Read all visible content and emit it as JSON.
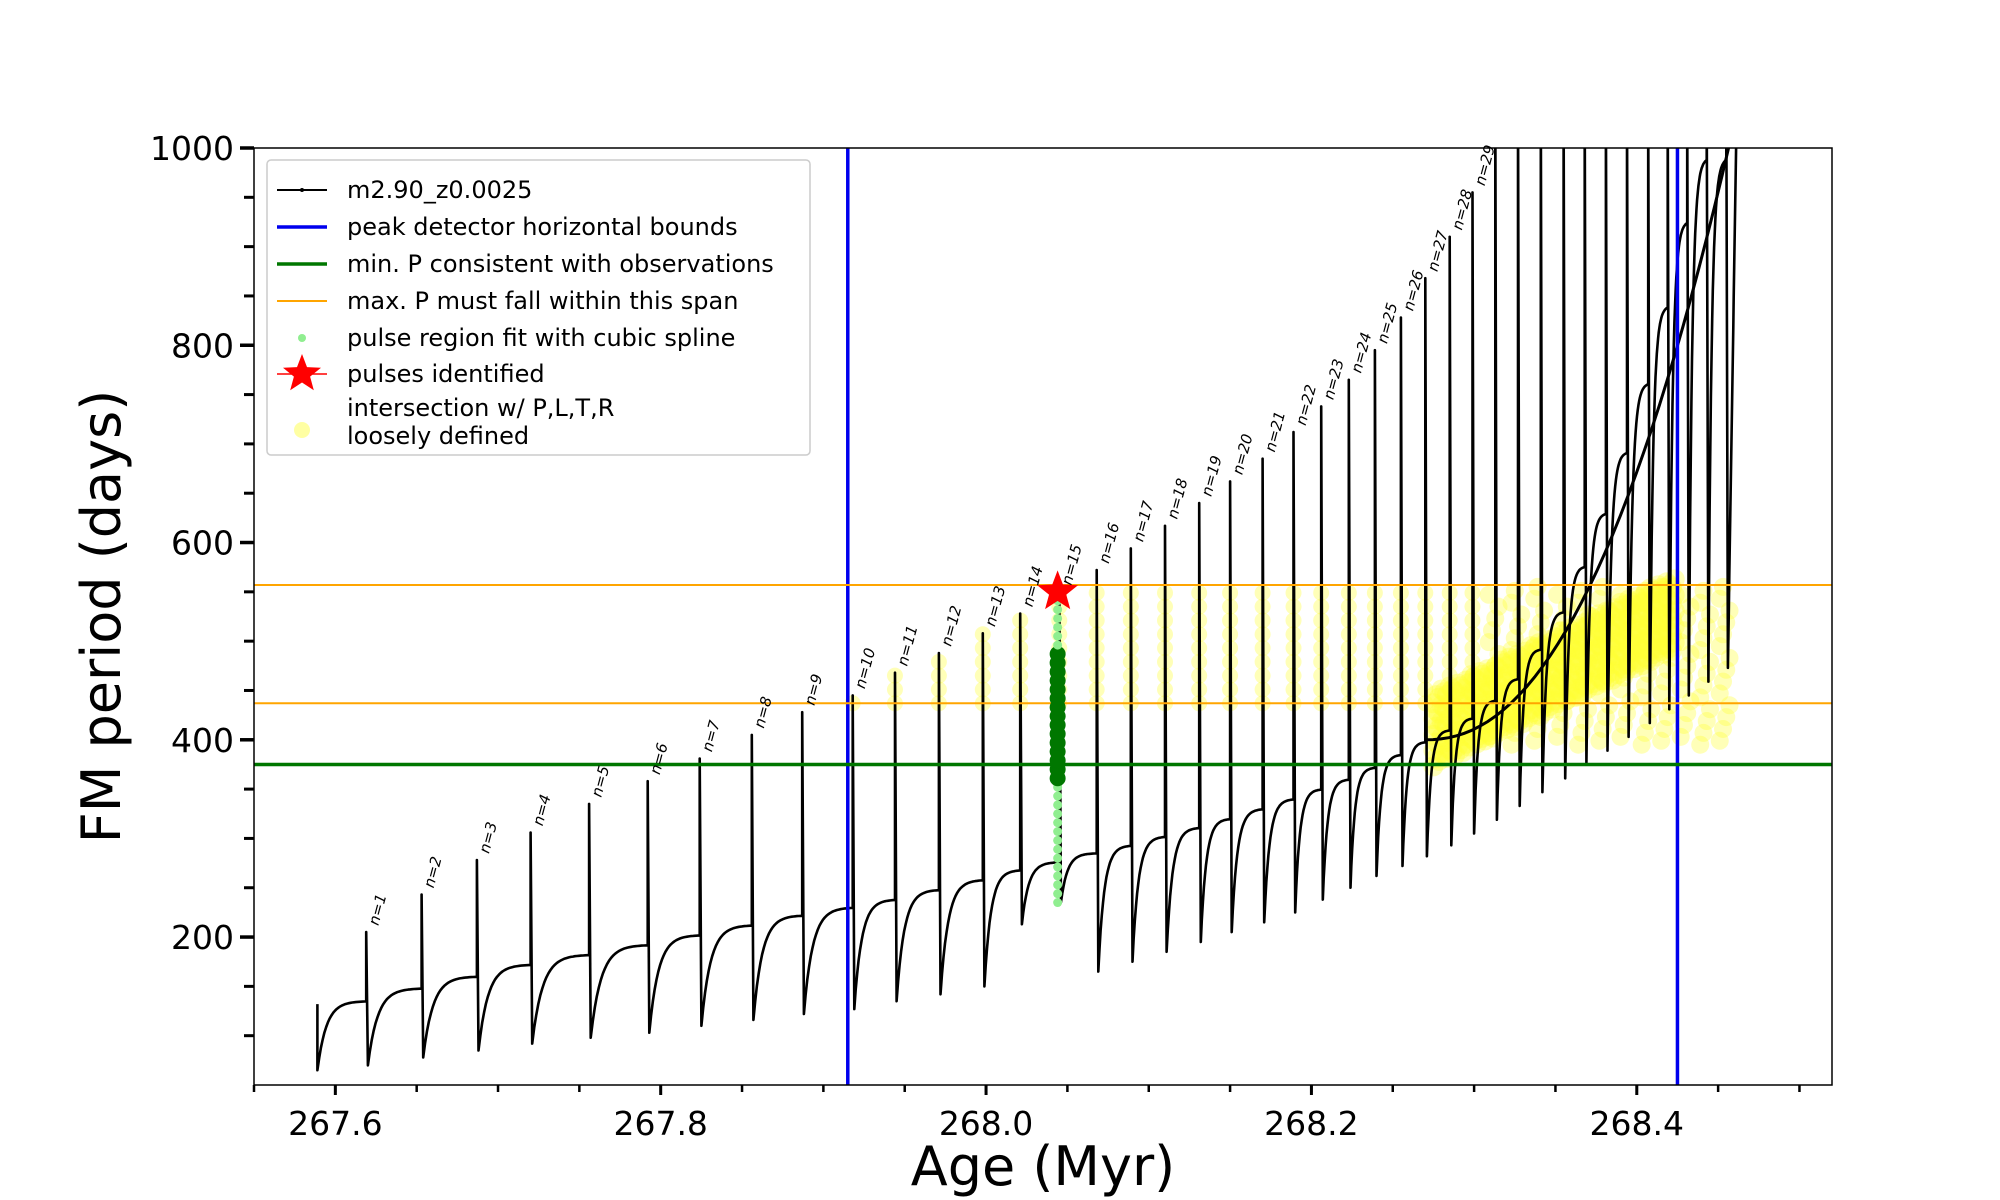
{
  "chart_data": {
    "type": "line",
    "xlabel": "Age (Myr)",
    "ylabel": "FM period (days)",
    "xlim": [
      267.55,
      268.52
    ],
    "ylim": [
      50,
      1000
    ],
    "x_ticks": [
      267.6,
      267.8,
      268.0,
      268.2,
      268.4
    ],
    "x_tick_labels": [
      "267.6",
      "267.8",
      "268.0",
      "268.2",
      "268.4"
    ],
    "y_ticks": [
      200,
      400,
      600,
      800,
      1000
    ],
    "y_tick_labels": [
      "200",
      "400",
      "600",
      "800",
      "1000"
    ],
    "colors": {
      "track": "#000000",
      "bounds": "#0000ee",
      "min_p": "#007700",
      "max_p": "#ffa500",
      "spline": "#90ee90",
      "pulse": "#ff0000",
      "intersection": "#ffff33"
    },
    "legend": {
      "position": "top-left",
      "entries": [
        {
          "key": "track",
          "label": "m2.90_z0.0025"
        },
        {
          "key": "bounds",
          "label": "peak detector horizontal bounds"
        },
        {
          "key": "min_p",
          "label": "min. P consistent with observations"
        },
        {
          "key": "max_p",
          "label": "max. P must fall within this span"
        },
        {
          "key": "spline",
          "label": "pulse region fit with cubic spline"
        },
        {
          "key": "pulse",
          "label": "pulses identified"
        },
        {
          "key": "intersection",
          "label": "intersection w/ P,L,T,R",
          "label2": "loosely defined"
        }
      ]
    },
    "bounds_x": [
      267.915,
      268.425
    ],
    "min_p": 375,
    "max_p_span": [
      437,
      557
    ],
    "pulse_identified": {
      "x": 268.044,
      "y": 550
    },
    "spline_region": {
      "x": 268.044,
      "y_min": 235,
      "y_max": 548
    },
    "thermal_pulses": [
      {
        "n": "n=1",
        "x": 267.619,
        "peak": 205,
        "trough": 70,
        "plateau": 135
      },
      {
        "n": "n=2",
        "x": 267.653,
        "peak": 243,
        "trough": 78,
        "plateau": 148
      },
      {
        "n": "n=3",
        "x": 267.687,
        "peak": 278,
        "trough": 85,
        "plateau": 160
      },
      {
        "n": "n=4",
        "x": 267.72,
        "peak": 306,
        "trough": 92,
        "plateau": 172
      },
      {
        "n": "n=5",
        "x": 267.756,
        "peak": 335,
        "trough": 98,
        "plateau": 182
      },
      {
        "n": "n=6",
        "x": 267.792,
        "peak": 358,
        "trough": 103,
        "plateau": 192
      },
      {
        "n": "n=7",
        "x": 267.824,
        "peak": 381,
        "trough": 110,
        "plateau": 202
      },
      {
        "n": "n=8",
        "x": 267.856,
        "peak": 405,
        "trough": 116,
        "plateau": 212
      },
      {
        "n": "n=9",
        "x": 267.887,
        "peak": 428,
        "trough": 122,
        "plateau": 222
      },
      {
        "n": "n=10",
        "x": 267.918,
        "peak": 445,
        "trough": 127,
        "plateau": 230
      },
      {
        "n": "n=11",
        "x": 267.944,
        "peak": 468,
        "trough": 135,
        "plateau": 238
      },
      {
        "n": "n=12",
        "x": 267.971,
        "peak": 488,
        "trough": 142,
        "plateau": 248
      },
      {
        "n": "n=13",
        "x": 267.998,
        "peak": 508,
        "trough": 150,
        "plateau": 258
      },
      {
        "n": "n=14",
        "x": 268.021,
        "peak": 528,
        "trough": 213,
        "plateau": 268
      },
      {
        "n": "n=15",
        "x": 268.045,
        "peak": 550,
        "trough": 235,
        "plateau": 276
      },
      {
        "n": "n=16",
        "x": 268.068,
        "peak": 572,
        "trough": 165,
        "plateau": 285
      },
      {
        "n": "n=17",
        "x": 268.089,
        "peak": 594,
        "trough": 175,
        "plateau": 293
      },
      {
        "n": "n=18",
        "x": 268.11,
        "peak": 617,
        "trough": 185,
        "plateau": 302
      },
      {
        "n": "n=19",
        "x": 268.131,
        "peak": 640,
        "trough": 195,
        "plateau": 311
      },
      {
        "n": "n=20",
        "x": 268.15,
        "peak": 662,
        "trough": 205,
        "plateau": 320
      },
      {
        "n": "n=21",
        "x": 268.17,
        "peak": 685,
        "trough": 215,
        "plateau": 330
      },
      {
        "n": "n=22",
        "x": 268.189,
        "peak": 712,
        "trough": 225,
        "plateau": 340
      },
      {
        "n": "n=23",
        "x": 268.206,
        "peak": 738,
        "trough": 238,
        "plateau": 350
      },
      {
        "n": "n=24",
        "x": 268.223,
        "peak": 765,
        "trough": 250,
        "plateau": 360
      },
      {
        "n": "n=25",
        "x": 268.239,
        "peak": 795,
        "trough": 262,
        "plateau": 372
      },
      {
        "n": "n=26",
        "x": 268.255,
        "peak": 828,
        "trough": 272,
        "plateau": 385
      },
      {
        "n": "n=27",
        "x": 268.27,
        "peak": 868,
        "trough": 282,
        "plateau": 398
      },
      {
        "n": "n=28",
        "x": 268.285,
        "peak": 910,
        "trough": 293,
        "plateau": 410
      },
      {
        "n": "n=29",
        "x": 268.299,
        "peak": 955,
        "trough": 305,
        "plateau": 422
      }
    ],
    "late_pulses_x": [
      268.313,
      268.327,
      268.341,
      268.355,
      268.368,
      268.381,
      268.394,
      268.407,
      268.419,
      268.431,
      268.443,
      268.455
    ]
  }
}
